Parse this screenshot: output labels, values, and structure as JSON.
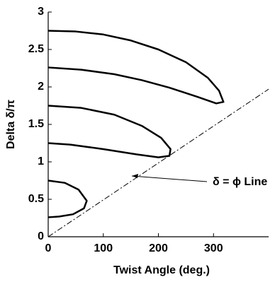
{
  "chart_data": {
    "type": "line",
    "xlabel": "Twist Angle (deg.)",
    "ylabel": "Delta δ/π",
    "annotation": "δ = ϕ Line",
    "xlim": [
      0,
      400
    ],
    "ylim": [
      0,
      3
    ],
    "xticks": [
      0,
      100,
      200,
      300
    ],
    "yticks": [
      0,
      0.5,
      1,
      1.5,
      2,
      2.5,
      3
    ],
    "series": [
      {
        "color": "#000000",
        "style": "solid",
        "x": [
          0,
          50,
          100,
          150,
          200,
          250,
          290,
          310,
          318,
          305,
          270,
          220,
          170,
          120,
          60,
          0
        ],
        "values": [
          2.75,
          2.74,
          2.7,
          2.62,
          2.5,
          2.33,
          2.12,
          1.95,
          1.8,
          1.78,
          1.87,
          1.99,
          2.09,
          2.17,
          2.23,
          2.26
        ]
      },
      {
        "color": "#000000",
        "style": "solid",
        "x": [
          0,
          60,
          120,
          170,
          205,
          222,
          220,
          200,
          160,
          100,
          40,
          0
        ],
        "values": [
          1.75,
          1.72,
          1.63,
          1.48,
          1.32,
          1.17,
          1.08,
          1.06,
          1.1,
          1.17,
          1.23,
          1.25
        ]
      },
      {
        "color": "#000000",
        "style": "solid",
        "x": [
          0,
          30,
          55,
          70,
          65,
          45,
          20,
          0
        ],
        "values": [
          0.75,
          0.72,
          0.63,
          0.48,
          0.38,
          0.3,
          0.27,
          0.26
        ]
      },
      {
        "color": "#000000",
        "style": "dashdot",
        "x": [
          0,
          400
        ],
        "values": [
          0,
          1.97
        ]
      }
    ]
  }
}
